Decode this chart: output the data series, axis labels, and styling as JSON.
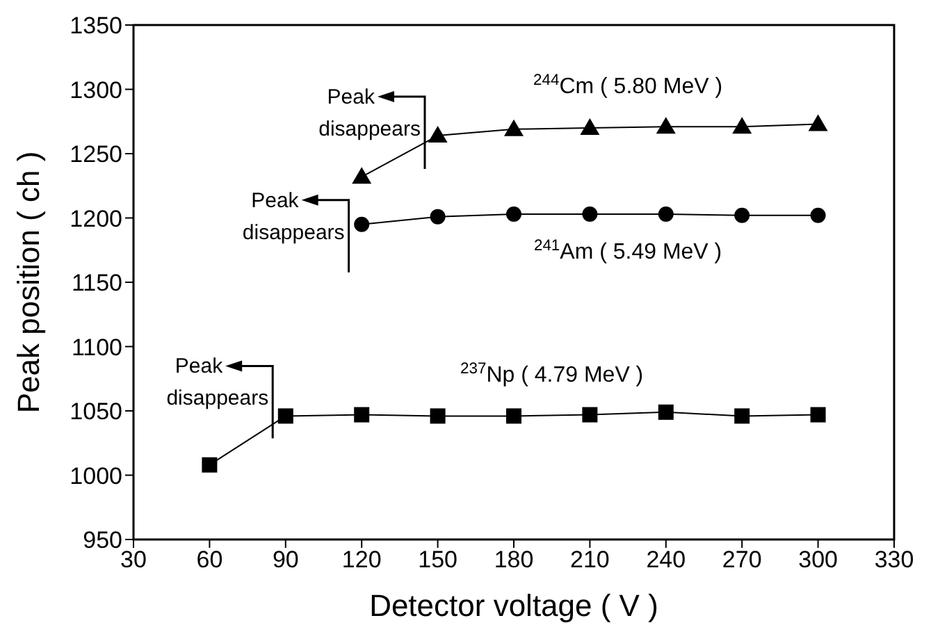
{
  "chart_data": {
    "type": "line",
    "xlabel": "Detector voltage  ( V )",
    "ylabel": "Peak position  ( ch )",
    "xlim": [
      30,
      330
    ],
    "xticks": [
      30,
      60,
      90,
      120,
      150,
      180,
      210,
      240,
      270,
      300,
      330
    ],
    "ylim": [
      950,
      1350
    ],
    "yticks": [
      950,
      1000,
      1050,
      1100,
      1150,
      1200,
      1250,
      1300,
      1350
    ],
    "line_style": "solid",
    "series": [
      {
        "name": "$^{244}$Cm ( 5.80 MeV )",
        "color": "#000000",
        "marker": "triangle",
        "x": [
          120,
          150,
          180,
          210,
          240,
          270,
          300
        ],
        "values": [
          1232,
          1264,
          1269,
          1270,
          1271,
          1271,
          1273
        ]
      },
      {
        "name": "$^{241}$Am ( 5.49 MeV )",
        "color": "#000000",
        "marker": "circle",
        "x": [
          120,
          150,
          180,
          210,
          240,
          270,
          300
        ],
        "values": [
          1195,
          1201,
          1203,
          1203,
          1203,
          1202,
          1202
        ]
      },
      {
        "name": "$^{237}$Np ( 4.79 MeV )",
        "color": "#000000",
        "marker": "square",
        "x": [
          60,
          90,
          120,
          150,
          180,
          210,
          240,
          270,
          300
        ],
        "values": [
          1008,
          1046,
          1047,
          1046,
          1046,
          1047,
          1049,
          1046,
          1047
        ]
      }
    ],
    "annotations": [
      "Peak disappears",
      "Peak disappears",
      "Peak disappears"
    ]
  }
}
